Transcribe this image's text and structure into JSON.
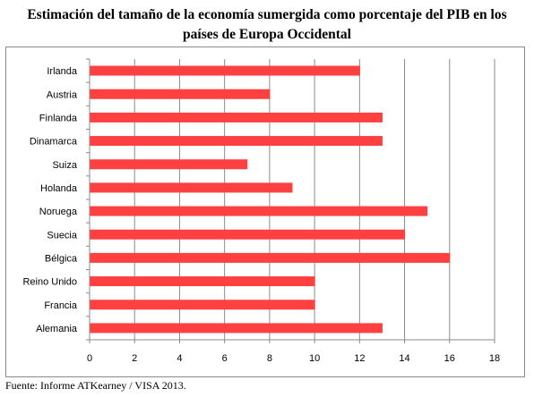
{
  "title": {
    "line1": "Estimación del tamaño de la economía sumergida como porcentaje del PIB en los",
    "line2": "países de Europa Occidental"
  },
  "source": "Fuente: Informe ATKearney / VISA 2013.",
  "chart_data": {
    "type": "bar",
    "orientation": "horizontal",
    "title": "Estimación del tamaño de la economía sumergida como porcentaje del PIB en los países de Europa Occidental",
    "categories": [
      "Irlanda",
      "Austria",
      "Finlanda",
      "Dinamarca",
      "Suiza",
      "Holanda",
      "Noruega",
      "Suecia",
      "Bélgica",
      "Reino Unido",
      "Francia",
      "Alemania"
    ],
    "values": [
      12,
      8,
      13,
      13,
      7,
      9,
      15,
      14,
      16,
      10,
      10,
      13
    ],
    "xlim": [
      0,
      18
    ],
    "xticks": [
      0,
      2,
      4,
      6,
      8,
      10,
      12,
      14,
      16,
      18
    ],
    "xlabel": "",
    "ylabel": "",
    "grid": "vertical",
    "bar_color": "#ff4040",
    "grid_color": "#8a8a8a"
  }
}
